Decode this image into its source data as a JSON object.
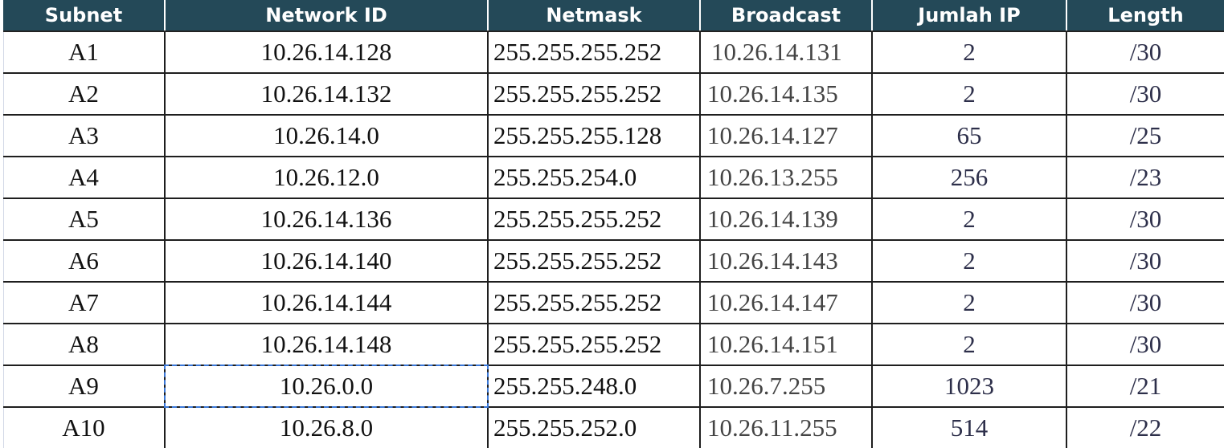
{
  "table": {
    "headers": [
      "Subnet",
      "Network ID",
      "Netmask",
      "Broadcast",
      "Jumlah IP",
      "Length"
    ],
    "rows": [
      [
        "A1",
        "10.26.14.128",
        "255.255.255.252",
        "10.26.14.131",
        "2",
        "/30"
      ],
      [
        "A2",
        "10.26.14.132",
        "255.255.255.252",
        "10.26.14.135",
        "2",
        "/30"
      ],
      [
        "A3",
        "10.26.14.0",
        "255.255.255.128",
        "10.26.14.127",
        "65",
        "/25"
      ],
      [
        "A4",
        "10.26.12.0",
        "255.255.254.0",
        "10.26.13.255",
        "256",
        "/23"
      ],
      [
        "A5",
        "10.26.14.136",
        "255.255.255.252",
        "10.26.14.139",
        "2",
        "/30"
      ],
      [
        "A6",
        "10.26.14.140",
        "255.255.255.252",
        "10.26.14.143",
        "2",
        "/30"
      ],
      [
        "A7",
        "10.26.14.144",
        "255.255.255.252",
        "10.26.14.147",
        "2",
        "/30"
      ],
      [
        "A8",
        "10.26.14.148",
        "255.255.255.252",
        "10.26.14.151",
        "2",
        "/30"
      ],
      [
        "A9",
        "10.26.0.0",
        "255.255.248.0",
        "10.26.7.255",
        "1023",
        "/21"
      ],
      [
        "A10",
        "10.26.8.0",
        "255.255.252.0",
        "10.26.11.255",
        "514",
        "/22"
      ]
    ]
  },
  "colors": {
    "header_bg": "#244958",
    "selection": "#3b78d8"
  }
}
